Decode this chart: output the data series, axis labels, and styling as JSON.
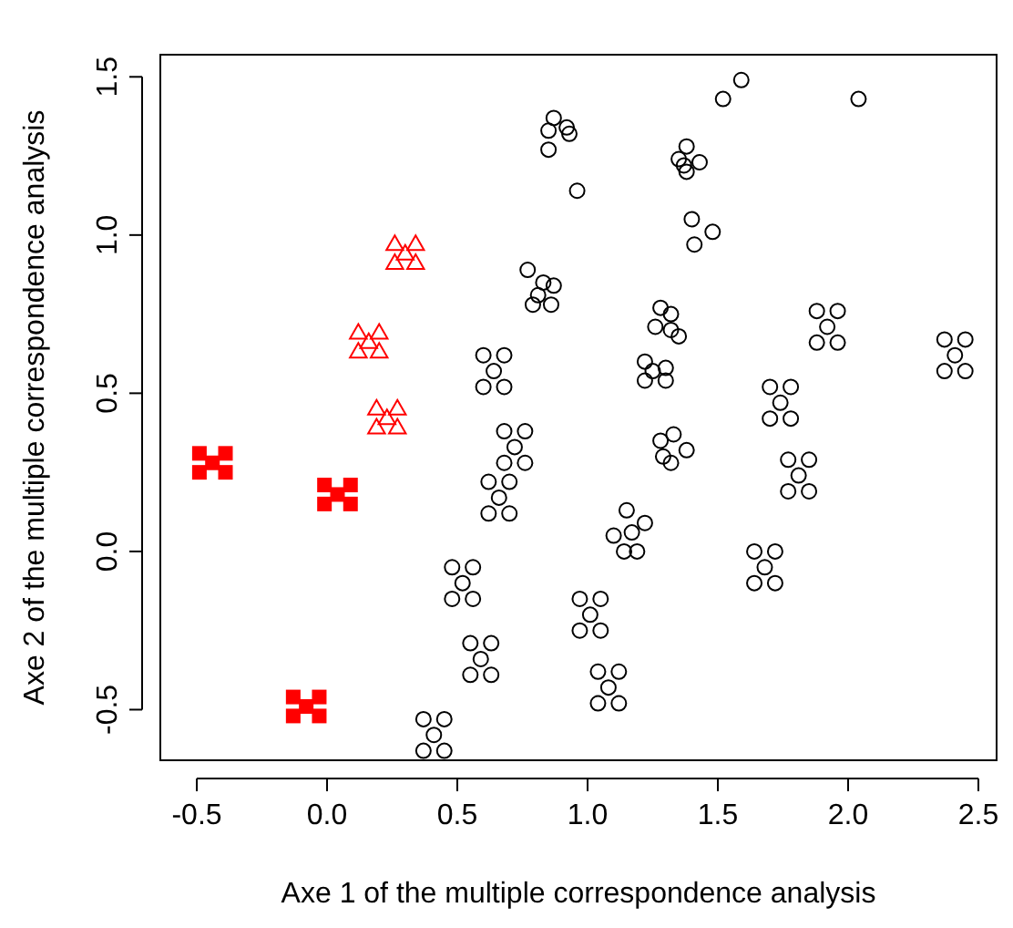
{
  "chart_data": {
    "type": "scatter",
    "xlabel": "Axe 1 of the multiple correspondence analysis",
    "ylabel": "Axe 2 of the multiple correspondence analysis",
    "xlim": [
      -0.64,
      2.57
    ],
    "ylim": [
      -0.66,
      1.57
    ],
    "xticks": [
      -0.5,
      {
        "value": 0,
        "label": "0.0"
      },
      0.5,
      {
        "value": 1,
        "label": "1.0"
      },
      1.5,
      {
        "value": 2,
        "label": "2.0"
      },
      2.5
    ],
    "yticks": [
      -0.5,
      {
        "value": 0,
        "label": "0.0"
      },
      0.5,
      {
        "value": 1,
        "label": "1.0"
      },
      1.5
    ],
    "grid": false,
    "series": [
      {
        "color": "#000000",
        "marker": "circle",
        "x": [
          1.01,
          0.97,
          1.05,
          0.97,
          1.05,
          1.08,
          1.04,
          1.12,
          1.04,
          1.12,
          1.68,
          1.64,
          1.72,
          1.64,
          1.72,
          1.81,
          1.77,
          1.85,
          1.77,
          1.85,
          1.74,
          1.7,
          1.78,
          1.7,
          1.78,
          1.92,
          1.88,
          1.96,
          1.88,
          1.96,
          2.41,
          2.37,
          2.45,
          2.37,
          2.45,
          0.52,
          0.48,
          0.56,
          0.48,
          0.56,
          0.59,
          0.55,
          0.63,
          0.55,
          0.63,
          0.41,
          0.37,
          0.45,
          0.37,
          0.45,
          0.64,
          0.6,
          0.68,
          0.6,
          0.68,
          0.72,
          0.68,
          0.76,
          0.68,
          0.76,
          0.66,
          0.62,
          0.7,
          0.62,
          0.7,
          0.87,
          0.85,
          0.92,
          0.93,
          0.85,
          0.96,
          0.77,
          0.83,
          0.87,
          0.81,
          0.79,
          0.86,
          1.59,
          1.52,
          2.04,
          1.38,
          1.35,
          1.43,
          1.38,
          1.37,
          1.4,
          1.48,
          1.41,
          1.28,
          1.32,
          1.26,
          1.35,
          1.32,
          1.22,
          1.3,
          1.22,
          1.3,
          1.25,
          1.28,
          1.33,
          1.38,
          1.32,
          1.29,
          1.15,
          1.22,
          1.1,
          1.19,
          1.14,
          1.17
        ],
        "values": [
          -0.2,
          -0.25,
          -0.25,
          -0.15,
          -0.15,
          -0.43,
          -0.48,
          -0.48,
          -0.38,
          -0.38,
          -0.05,
          -0.1,
          -0.1,
          0.0,
          0.0,
          0.24,
          0.19,
          0.19,
          0.29,
          0.29,
          0.47,
          0.42,
          0.42,
          0.52,
          0.52,
          0.71,
          0.66,
          0.66,
          0.76,
          0.76,
          0.62,
          0.57,
          0.57,
          0.67,
          0.67,
          -0.1,
          -0.15,
          -0.15,
          -0.05,
          -0.05,
          -0.34,
          -0.39,
          -0.39,
          -0.29,
          -0.29,
          -0.58,
          -0.63,
          -0.63,
          -0.53,
          -0.53,
          0.57,
          0.52,
          0.52,
          0.62,
          0.62,
          0.33,
          0.28,
          0.28,
          0.38,
          0.38,
          0.17,
          0.12,
          0.12,
          0.22,
          0.22,
          1.37,
          1.33,
          1.34,
          1.32,
          1.27,
          1.14,
          0.89,
          0.85,
          0.84,
          0.81,
          0.78,
          0.78,
          1.49,
          1.43,
          1.43,
          1.28,
          1.24,
          1.23,
          1.2,
          1.22,
          1.05,
          1.01,
          0.97,
          0.77,
          0.75,
          0.71,
          0.68,
          0.7,
          0.6,
          0.58,
          0.54,
          0.54,
          0.57,
          0.35,
          0.37,
          0.32,
          0.28,
          0.3,
          0.13,
          0.09,
          0.05,
          0.0,
          0.0,
          0.06
        ]
      },
      {
        "color": "#ff0000",
        "marker": "triangle",
        "x": [
          0.3,
          0.26,
          0.34,
          0.26,
          0.34,
          0.16,
          0.12,
          0.2,
          0.12,
          0.2,
          0.23,
          0.19,
          0.27,
          0.19,
          0.27
        ],
        "values": [
          0.94,
          0.91,
          0.91,
          0.97,
          0.97,
          0.66,
          0.63,
          0.63,
          0.69,
          0.69,
          0.42,
          0.39,
          0.39,
          0.45,
          0.45
        ]
      },
      {
        "color": "#ff0000",
        "marker": "square",
        "x": [
          -0.44,
          -0.49,
          -0.39,
          -0.49,
          -0.39,
          0.04,
          -0.01,
          0.09,
          -0.01,
          0.09,
          -0.08,
          -0.13,
          -0.03,
          -0.13,
          -0.03
        ],
        "values": [
          0.28,
          0.25,
          0.25,
          0.31,
          0.31,
          0.18,
          0.15,
          0.15,
          0.21,
          0.21,
          -0.49,
          -0.52,
          -0.52,
          -0.46,
          -0.46
        ]
      }
    ]
  }
}
